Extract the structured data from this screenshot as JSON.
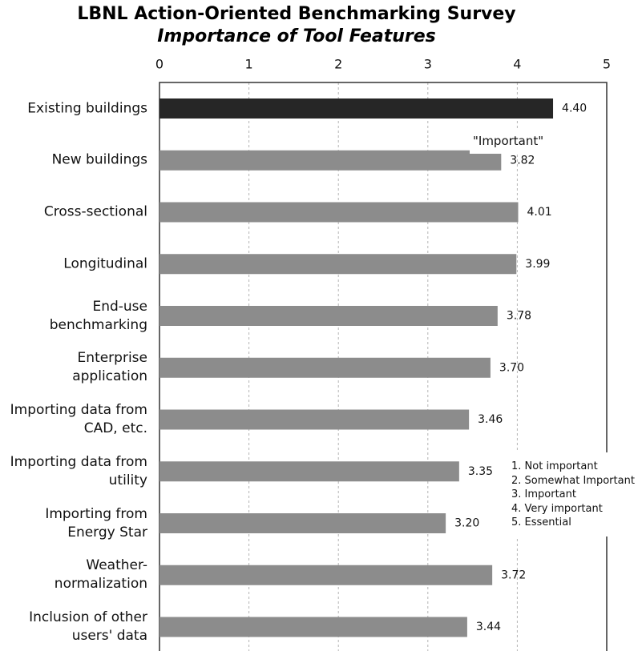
{
  "chart_data": {
    "type": "bar",
    "orientation": "horizontal",
    "title": "LBNL Action-Oriented Benchmarking Survey",
    "subtitle": "Importance of Tool Features",
    "categories": [
      "Existing buildings",
      "New buildings",
      "Cross-sectional",
      "Longitudinal",
      "End-use\nbenchmarking",
      "Enterprise\napplication",
      "Importing data from\nCAD, etc.",
      "Importing data from\nutility",
      "Importing from\nEnergy Star",
      "Weather-\nnormalization",
      "Inclusion of other\nusers' data"
    ],
    "values": [
      4.4,
      3.82,
      4.01,
      3.99,
      3.78,
      3.7,
      3.46,
      3.35,
      3.2,
      3.72,
      3.44
    ],
    "value_labels": [
      "4.40",
      "3.82",
      "4.01",
      "3.99",
      "3.78",
      "3.70",
      "3.46",
      "3.35",
      "3.20",
      "3.72",
      "3.44"
    ],
    "xlim": [
      0,
      5
    ],
    "xticks": [
      0,
      1,
      2,
      3,
      4,
      5
    ],
    "x_axis_position": "top",
    "grid": true,
    "bar_color": "#8c8c8c",
    "highlight": {
      "index": 0,
      "color": "#262626"
    },
    "annotations": [
      "\"Important\""
    ],
    "legend": {
      "placement": "bottom-right",
      "entries": [
        "1. Not important",
        "2. Somewhat Important",
        "3. Important",
        "4. Very important",
        "5. Essential"
      ]
    }
  }
}
